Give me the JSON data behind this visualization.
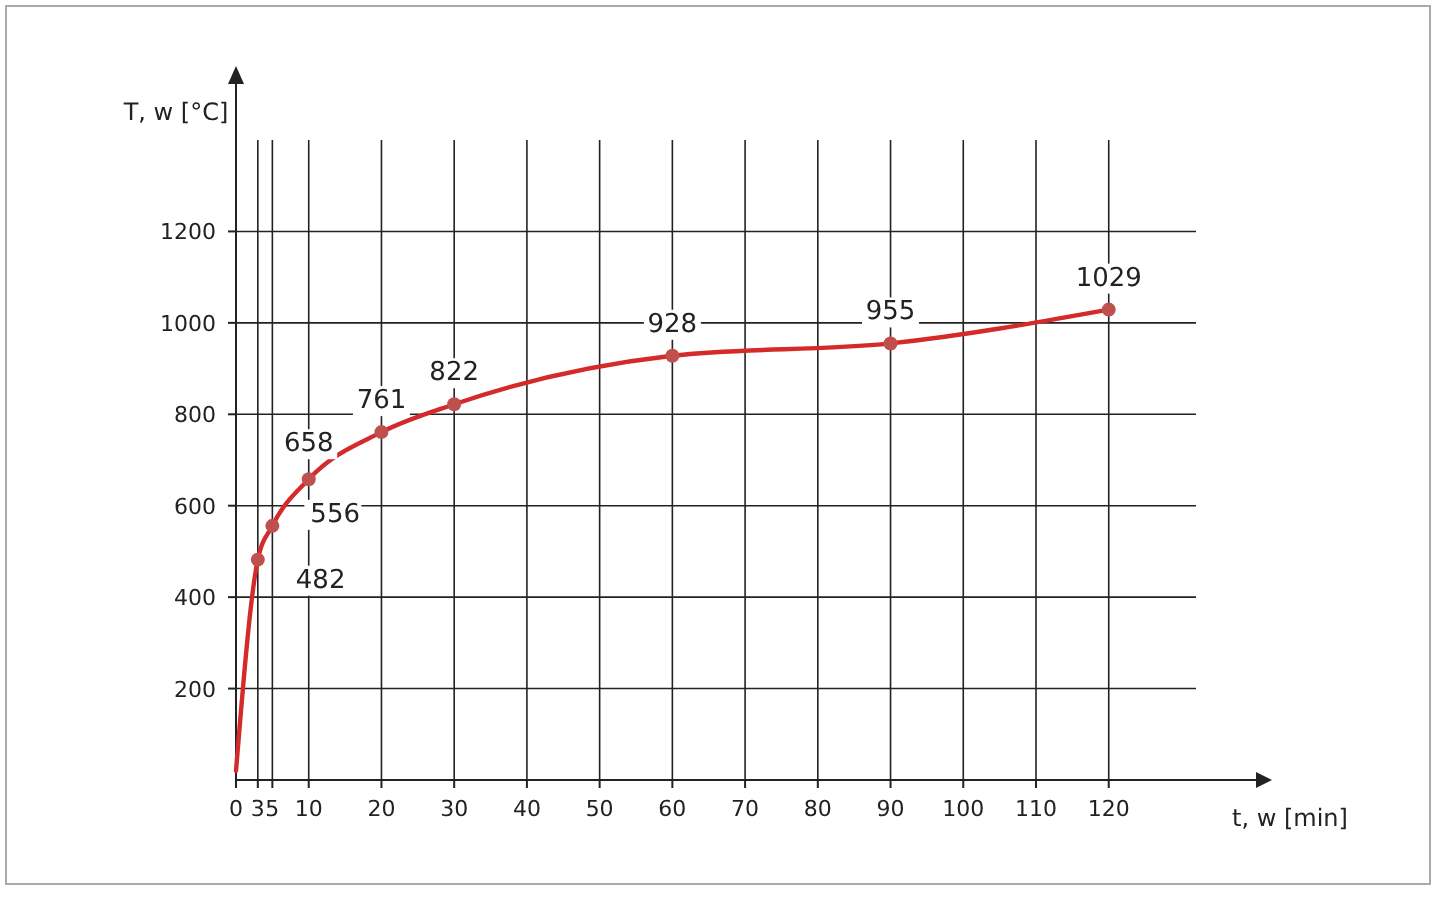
{
  "chart_data": {
    "type": "line",
    "xlabel": "t, w [min]",
    "ylabel": "T, w [°C]",
    "x": [
      0,
      3,
      5,
      10,
      20,
      30,
      60,
      90,
      120
    ],
    "series": [
      {
        "color": "#d42a2a",
        "values": [
          20,
          482,
          556,
          658,
          761,
          822,
          928,
          955,
          1029
        ],
        "value_labels": [
          null,
          "482",
          "556",
          "658",
          "761",
          "822",
          "928",
          "955",
          "1029"
        ]
      }
    ],
    "xlim": [
      0,
      132
    ],
    "xticks": [
      0,
      3,
      5,
      10,
      20,
      30,
      40,
      50,
      60,
      70,
      80,
      90,
      100,
      110,
      120
    ],
    "ylim": [
      0,
      1400
    ],
    "yticks": [
      200,
      400,
      600,
      800,
      1000,
      1200
    ],
    "grid": true,
    "marker": "circle",
    "line_style": "solid"
  }
}
